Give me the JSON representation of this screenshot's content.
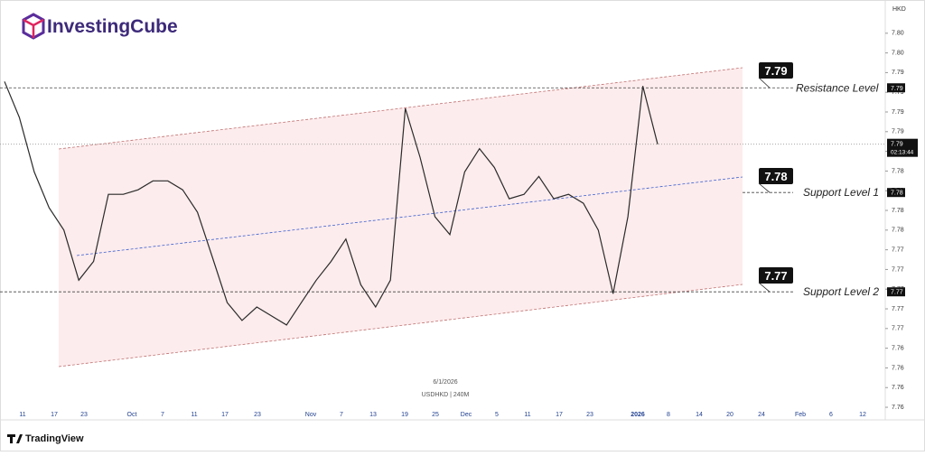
{
  "logo": "InvestingCube",
  "footer": "TradingView",
  "chart_data": {
    "type": "line",
    "currency": "HKD",
    "date": "6/1/2026",
    "symbol": "USDHKD | 240M",
    "color": "#2a2a2a",
    "values": [
      7.7936,
      7.7896,
      7.7835,
      7.7795,
      7.777,
      7.7714,
      7.7735,
      7.781,
      7.781,
      7.7815,
      7.7825,
      7.7825,
      7.7815,
      7.779,
      7.774,
      7.7689,
      7.7669,
      7.7684,
      7.7674,
      7.7664,
      7.7689,
      7.7714,
      7.7735,
      7.776,
      7.7709,
      7.7684,
      7.7714,
      7.7906,
      7.7851,
      7.7785,
      7.7765,
      7.7835,
      7.7861,
      7.784,
      7.7805,
      7.781,
      7.783,
      7.7805,
      7.781,
      7.78,
      7.777,
      7.7699,
      7.7785,
      7.7931,
      7.7866
    ],
    "ylim": [
      7.7568,
      7.8012
    ],
    "yticks": [
      {
        "value": 7.799,
        "label": "7.80"
      },
      {
        "value": 7.7968,
        "label": "7.80"
      },
      {
        "value": 7.7946,
        "label": "7.79"
      },
      {
        "value": 7.7924,
        "label": "7.79"
      },
      {
        "value": 7.7902,
        "label": "7.79"
      },
      {
        "value": 7.788,
        "label": "7.79"
      },
      {
        "value": 7.7858,
        "label": "7.79"
      },
      {
        "value": 7.7836,
        "label": "7.78"
      },
      {
        "value": 7.7814,
        "label": "7.78"
      },
      {
        "value": 7.7792,
        "label": "7.78"
      },
      {
        "value": 7.777,
        "label": "7.78"
      },
      {
        "value": 7.7748,
        "label": "7.77"
      },
      {
        "value": 7.7726,
        "label": "7.77"
      },
      {
        "value": 7.7704,
        "label": "7.77"
      },
      {
        "value": 7.7682,
        "label": "7.77"
      },
      {
        "value": 7.766,
        "label": "7.77"
      },
      {
        "value": 7.7638,
        "label": "7.76"
      },
      {
        "value": 7.7616,
        "label": "7.76"
      },
      {
        "value": 7.7594,
        "label": "7.76"
      },
      {
        "value": 7.7572,
        "label": "7.76"
      }
    ],
    "x_labels": [
      "11",
      "17",
      "23",
      "Oct",
      "7",
      "11",
      "17",
      "23",
      "Nov",
      "7",
      "13",
      "19",
      "25",
      "Dec",
      "5",
      "11",
      "17",
      "23",
      "2026",
      "8",
      "14",
      "20",
      "24",
      "Feb",
      "6",
      "12"
    ],
    "current_price": {
      "value": 7.7866,
      "label": "7.79",
      "countdown": "02:13:44"
    },
    "levels": [
      {
        "name": "Resistance Level",
        "value": 7.7929,
        "label": "7.79"
      },
      {
        "name": "Support Level 1",
        "value": 7.7812,
        "label": "7.78"
      },
      {
        "name": "Support Level 2",
        "value": 7.7701,
        "label": "7.77"
      }
    ]
  }
}
